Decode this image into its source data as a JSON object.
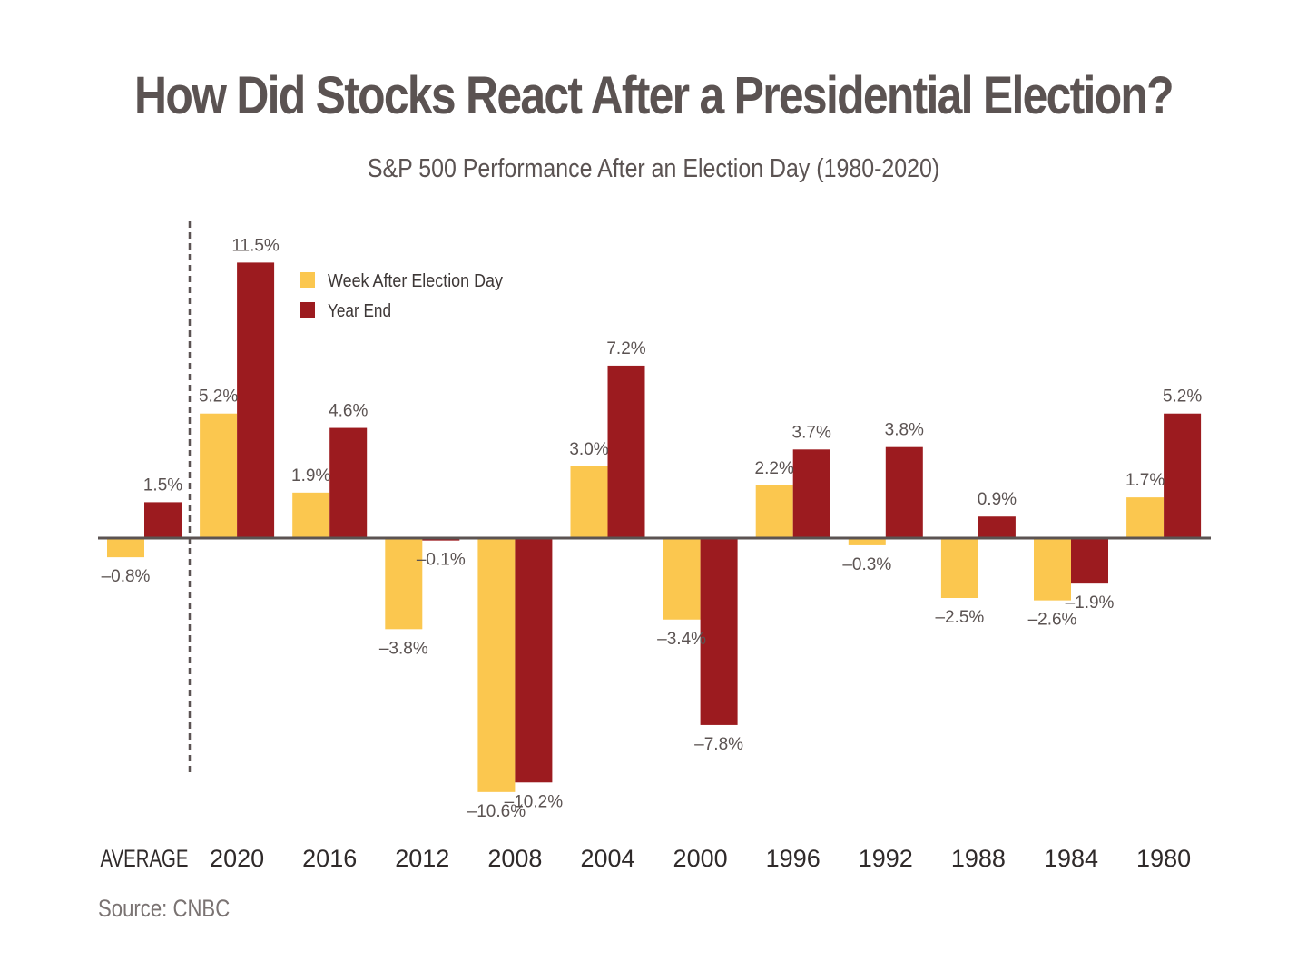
{
  "chart_data": {
    "type": "bar",
    "title": "How Did Stocks React After a Presidential Election?",
    "subtitle": "S&P 500 Performance After an Election Day (1980-2020)",
    "source": "Source: CNBC",
    "categories": [
      "AVERAGE",
      "2020",
      "2016",
      "2012",
      "2008",
      "2004",
      "2000",
      "1996",
      "1992",
      "1988",
      "1984",
      "1980"
    ],
    "series": [
      {
        "name": "Week After Election Day",
        "color": "#fbc74f",
        "values": [
          -0.8,
          5.2,
          1.9,
          -3.8,
          -10.6,
          3.0,
          -3.4,
          2.2,
          -0.3,
          -2.5,
          -2.6,
          1.7
        ],
        "labels": [
          "–0.8%",
          "5.2%",
          "1.9%",
          "–3.8%",
          "–10.6%",
          "3.0%",
          "–3.4%",
          "2.2%",
          "–0.3%",
          "–2.5%",
          "–2.6%",
          "1.7%"
        ]
      },
      {
        "name": "Year End",
        "color": "#9c1b1f",
        "values": [
          1.5,
          11.5,
          4.6,
          -0.1,
          -10.2,
          7.2,
          -7.8,
          3.7,
          3.8,
          0.9,
          -1.9,
          5.2
        ],
        "labels": [
          "1.5%",
          "11.5%",
          "4.6%",
          "–0.1%",
          "–10.2%",
          "7.2%",
          "–7.8%",
          "3.7%",
          "3.8%",
          "0.9%",
          "–1.9%",
          "5.2%"
        ]
      }
    ],
    "ylim": [
      -12,
      12
    ],
    "legend_position": "top-left",
    "grid": false,
    "baseline_color": "#5b5352",
    "separator": "dashed line between AVERAGE and 2020"
  }
}
